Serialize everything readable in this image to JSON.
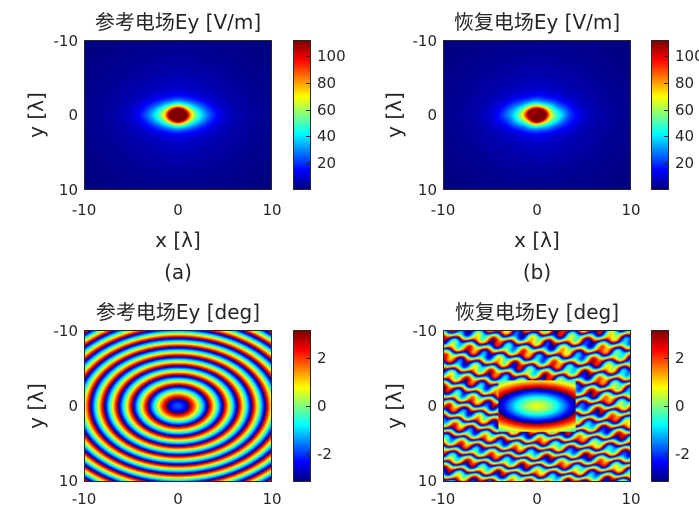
{
  "chart_data": [
    {
      "type": "heatmap",
      "title": "参考电场Ey [V/m]",
      "xlabel": "x [λ]",
      "ylabel": "y [λ]",
      "xlim": [
        -10,
        10
      ],
      "ylim": [
        -10,
        10
      ],
      "xticks": [
        "-10",
        "0",
        "10"
      ],
      "yticks": [
        "-10",
        "0",
        "10"
      ],
      "colorbar": {
        "min": 0,
        "max": 112,
        "ticks": [
          "20",
          "40",
          "60",
          "80",
          "100"
        ],
        "colormap": "jet"
      },
      "caption": "(a)",
      "field": "magnitude",
      "peak": 112
    },
    {
      "type": "heatmap",
      "title": "恢复电场Ey [V/m]",
      "xlabel": "x [λ]",
      "ylabel": "y [λ]",
      "xlim": [
        -10,
        10
      ],
      "ylim": [
        -10,
        10
      ],
      "xticks": [
        "-10",
        "0",
        "10"
      ],
      "yticks": [
        "-10",
        "0",
        "10"
      ],
      "colorbar": {
        "min": 0,
        "max": 112,
        "ticks": [
          "20",
          "40",
          "60",
          "80",
          "100"
        ],
        "colormap": "jet"
      },
      "caption": "(b)",
      "field": "magnitude",
      "peak": 112
    },
    {
      "type": "heatmap",
      "title": "参考电场Ey [deg]",
      "xlabel": "",
      "ylabel": "y [λ]",
      "xlim": [
        -10,
        10
      ],
      "ylim": [
        -10,
        10
      ],
      "xticks": [
        "-10",
        "0",
        "10"
      ],
      "yticks": [
        "-10",
        "0",
        "10"
      ],
      "colorbar": {
        "min": -3.14,
        "max": 3.14,
        "ticks": [
          "-2",
          "0",
          "2"
        ],
        "colormap": "jet"
      },
      "field": "phase"
    },
    {
      "type": "heatmap",
      "title": "恢复电场Ey [deg]",
      "xlabel": "",
      "ylabel": "y [λ]",
      "xlim": [
        -10,
        10
      ],
      "ylim": [
        -10,
        10
      ],
      "xticks": [
        "-10",
        "0",
        "10"
      ],
      "yticks": [
        "-10",
        "0",
        "10"
      ],
      "colorbar": {
        "min": -3.14,
        "max": 3.14,
        "ticks": [
          "-2",
          "0",
          "2"
        ],
        "colormap": "jet"
      },
      "field": "phase-distorted"
    }
  ]
}
